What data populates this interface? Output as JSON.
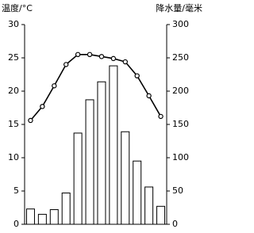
{
  "chart_data": {
    "type": "climate",
    "y_label": "温度/°C",
    "y2_label": "降水量/毫米",
    "categories": [
      null,
      null,
      null,
      null,
      null,
      null,
      null,
      null,
      null,
      null,
      null,
      null
    ],
    "series": [
      {
        "type": "bar",
        "axis": "y2",
        "color": "#ffffff",
        "stroke": "#000000",
        "values": [
          23,
          15,
          22,
          47,
          137,
          187,
          214,
          238,
          139,
          95,
          56,
          27
        ]
      },
      {
        "type": "line",
        "axis": "y",
        "color": "#000000",
        "values": [
          15.6,
          17.7,
          20.8,
          24,
          25.5,
          25.5,
          25.2,
          24.9,
          24.4,
          22.3,
          19.3,
          16.2
        ]
      }
    ],
    "ylim": [
      0,
      30
    ],
    "yticks": [
      0,
      5,
      10,
      15,
      20,
      25,
      30
    ],
    "y2lim": [
      0,
      300
    ],
    "y2ticks": [
      0,
      50,
      100,
      150,
      200,
      250,
      300
    ],
    "grid": false
  }
}
